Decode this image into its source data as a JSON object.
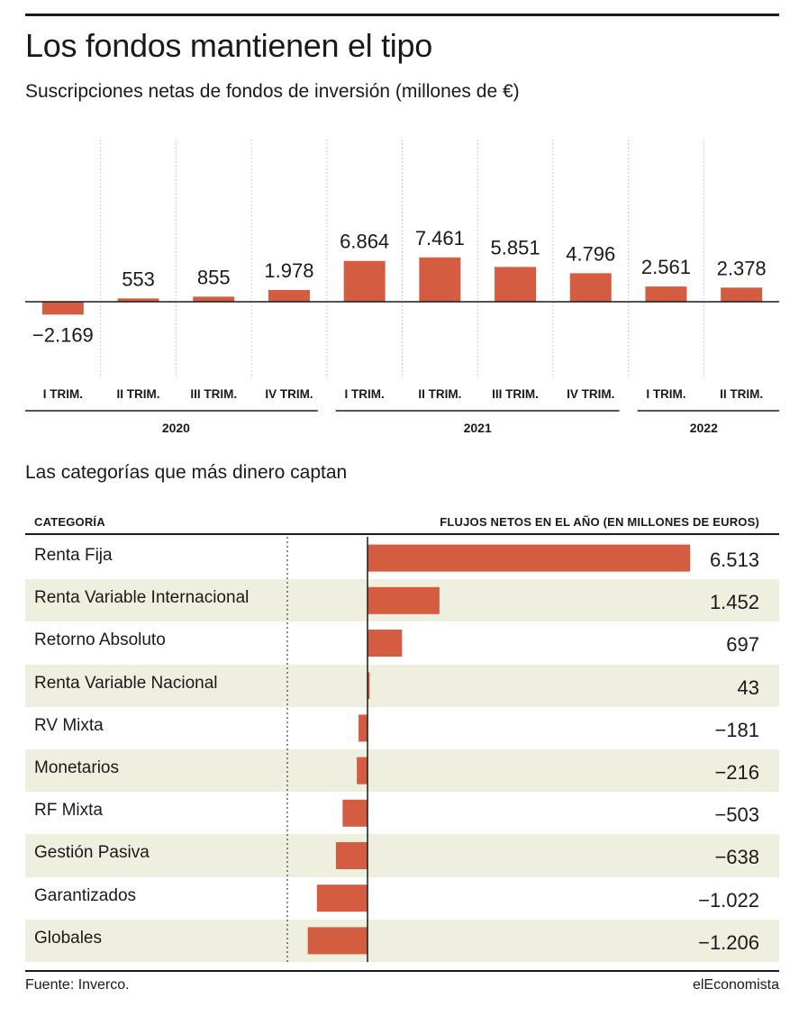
{
  "title": "Los fondos mantienen el tipo",
  "subtitle": "Suscripciones netas de fondos de inversión (millones de €)",
  "subtitle2": "Las categorías que más dinero captan",
  "table_headers": {
    "category": "CATEGORÍA",
    "flows": "FLUJOS NETOS EN EL AÑO (EN MILLONES DE EUROS)"
  },
  "footer": {
    "source": "Fuente: Inverco.",
    "brand": "elEconomista"
  },
  "colors": {
    "bar": "#d45c41",
    "shade": "#efefdf",
    "ink": "#1a1a1a"
  },
  "chart_data": [
    {
      "type": "bar",
      "categories": [
        "I TRIM.",
        "II TRIM.",
        "III TRIM.",
        "IV TRIM.",
        "I TRIM.",
        "II TRIM.",
        "III TRIM.",
        "IV TRIM.",
        "I TRIM.",
        "II TRIM."
      ],
      "values": [
        -2169,
        553,
        855,
        1978,
        6864,
        7461,
        5851,
        4796,
        2561,
        2378
      ],
      "value_labels": [
        "−2.169",
        "553",
        "855",
        "1.978",
        "6.864",
        "7.461",
        "5.851",
        "4.796",
        "2.561",
        "2.378"
      ],
      "years": [
        {
          "label": "2020",
          "from": 0,
          "to": 3
        },
        {
          "label": "2021",
          "from": 4,
          "to": 7
        },
        {
          "label": "2022",
          "from": 8,
          "to": 9
        }
      ],
      "ylim": [
        -2169,
        7461
      ],
      "grid": "vertical dotted separators"
    },
    {
      "type": "bar",
      "orientation": "horizontal",
      "categories": [
        "Renta Fija",
        "Renta Variable Internacional",
        "Retorno Absoluto",
        "Renta Variable Nacional",
        "RV Mixta",
        "Monetarios",
        "RF Mixta",
        "Gestión Pasiva",
        "Garantizados",
        "Globales"
      ],
      "values": [
        6513,
        1452,
        697,
        43,
        -181,
        -216,
        -503,
        -638,
        -1022,
        -1206
      ],
      "value_labels": [
        "6.513",
        "1.452",
        "697",
        "43",
        "−181",
        "−216",
        "−503",
        "−638",
        "−1.022",
        "−1.206"
      ],
      "xlim": [
        -1206,
        6513
      ]
    }
  ]
}
